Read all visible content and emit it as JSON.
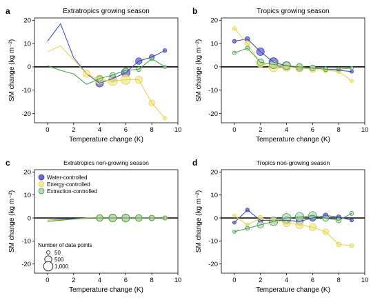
{
  "colors": {
    "water": "#3b3fb5",
    "water_fill": "#6a66d0",
    "energy": "#e8d23c",
    "energy_fill": "#f1ea9a",
    "extraction": "#3f9b46",
    "extraction_fill": "#b9dcbd"
  },
  "legend": {
    "water": "Water-controlled",
    "energy": "Energy-controlled",
    "extraction": "Extraction-controlled",
    "size_title": "Number of data points",
    "size_50": "50",
    "size_500": "500",
    "size_1000": "1,000"
  },
  "chart_data": [
    {
      "letter": "a",
      "type": "line",
      "title": "Extratropics growing season",
      "xlabel": "Temperature change (K)",
      "ylabel": "SM change (kg m⁻²)",
      "xlim": [
        -1,
        10
      ],
      "ylim": [
        -24,
        21
      ],
      "xticks": [
        0,
        2,
        4,
        6,
        8,
        10
      ],
      "yticks": [
        20,
        10,
        0,
        -10,
        -20
      ],
      "grid": false,
      "series": [
        {
          "key": "water",
          "x": [
            0,
            1,
            2,
            3,
            4,
            5,
            6,
            7,
            8,
            9
          ],
          "y": [
            11,
            18.5,
            4,
            -3,
            -7,
            -5,
            -2.5,
            2.5,
            4.2,
            7
          ],
          "n": [
            80,
            80,
            150,
            300,
            600,
            500,
            800,
            400,
            200,
            80
          ],
          "markers_from": 4
        },
        {
          "key": "energy",
          "x": [
            0,
            1,
            2,
            3,
            4,
            5,
            6,
            7,
            8,
            9
          ],
          "y": [
            6.5,
            9,
            3,
            -3,
            -5.5,
            -6,
            -5.5,
            -5.5,
            -15.5,
            -22
          ],
          "n": [
            80,
            80,
            150,
            500,
            900,
            1000,
            1000,
            500,
            300,
            50
          ],
          "markers_from": 3
        },
        {
          "key": "extraction",
          "x": [
            0,
            1,
            2,
            3,
            4,
            5,
            6,
            7,
            8,
            9
          ],
          "y": [
            0.5,
            -1.5,
            -3,
            -7.5,
            -5,
            -3.5,
            -1.5,
            -1,
            3.5,
            0
          ],
          "n": [
            50,
            60,
            80,
            150,
            250,
            200,
            200,
            150,
            100,
            50
          ],
          "markers_from": 4
        }
      ]
    },
    {
      "letter": "b",
      "type": "line",
      "title": "Tropics growing season",
      "xlabel": "Temperature change (K)",
      "ylabel": "SM change (kg m⁻²)",
      "xlim": [
        -1,
        10
      ],
      "ylim": [
        -24,
        21
      ],
      "xticks": [
        0,
        2,
        4,
        6,
        8,
        10
      ],
      "yticks": [
        20,
        10,
        0,
        -10,
        -20
      ],
      "grid": false,
      "series": [
        {
          "key": "water",
          "x": [
            0,
            1,
            2,
            3,
            4,
            5,
            6,
            7,
            8,
            9
          ],
          "y": [
            11,
            12,
            6.5,
            2,
            0.5,
            -0.5,
            -0.5,
            -1,
            -1.5,
            -2
          ],
          "n": [
            80,
            150,
            600,
            900,
            700,
            500,
            300,
            150,
            80,
            50
          ],
          "markers_from": 0
        },
        {
          "key": "energy",
          "x": [
            0,
            1,
            2,
            3,
            4,
            5,
            6,
            7,
            8,
            9
          ],
          "y": [
            16.5,
            10,
            1.5,
            0,
            0,
            -0.5,
            -1,
            -1.5,
            -2,
            -6
          ],
          "n": [
            80,
            200,
            600,
            1000,
            800,
            600,
            400,
            200,
            100,
            50
          ],
          "markers_from": 0
        },
        {
          "key": "extraction",
          "x": [
            0,
            1,
            2,
            3,
            4,
            5,
            6,
            7,
            8,
            9
          ],
          "y": [
            6,
            8,
            2,
            1,
            0.5,
            0,
            -0.5,
            -1,
            -1,
            -0.5
          ],
          "n": [
            60,
            100,
            400,
            700,
            600,
            400,
            300,
            150,
            80,
            50
          ],
          "markers_from": 0
        }
      ]
    },
    {
      "letter": "c",
      "type": "line",
      "title": "Extratropics non-growing season",
      "xlabel": "Temperature change (K)",
      "ylabel": "SM change (kg m⁻²)",
      "xlim": [
        -1,
        10
      ],
      "ylim": [
        -24,
        21
      ],
      "xticks": [
        0,
        2,
        4,
        6,
        8,
        10
      ],
      "yticks": [
        20,
        10,
        0,
        -10,
        -20
      ],
      "grid": false,
      "series": [
        {
          "key": "water",
          "x": [
            0,
            1,
            2,
            3,
            4,
            5,
            6,
            7,
            8,
            9
          ],
          "y": [
            -1,
            -0.5,
            -0.3,
            0,
            0,
            0,
            0,
            0,
            0,
            0
          ],
          "n": [
            50,
            50,
            60,
            100,
            300,
            400,
            400,
            300,
            200,
            100
          ],
          "markers_from": 4
        },
        {
          "key": "energy",
          "x": [
            0,
            1,
            2,
            3,
            4,
            5,
            6,
            7,
            8,
            9
          ],
          "y": [
            -1,
            -0.8,
            -0.5,
            0,
            0,
            0,
            0,
            0,
            0,
            0
          ],
          "n": [
            50,
            50,
            60,
            100,
            500,
            700,
            700,
            500,
            300,
            150
          ],
          "markers_from": 4
        },
        {
          "key": "extraction",
          "x": [
            0,
            1,
            2,
            3,
            4,
            5,
            6,
            7,
            8,
            9
          ],
          "y": [
            -1.5,
            -1,
            -0.5,
            -0.2,
            0,
            0,
            0,
            0,
            0,
            0
          ],
          "n": [
            50,
            50,
            60,
            100,
            400,
            600,
            600,
            400,
            250,
            100
          ],
          "markers_from": 4
        }
      ]
    },
    {
      "letter": "d",
      "type": "line",
      "title": "Tropics non-growing season",
      "xlabel": "Temperature change (K)",
      "ylabel": "SM change (kg m⁻²)",
      "xlim": [
        -1,
        10
      ],
      "ylim": [
        -24,
        21
      ],
      "xticks": [
        0,
        2,
        4,
        6,
        8,
        10
      ],
      "yticks": [
        20,
        10,
        0,
        -10,
        -20
      ],
      "grid": false,
      "series": [
        {
          "key": "water",
          "x": [
            0,
            1,
            2,
            3,
            4,
            5,
            6,
            7,
            8,
            9
          ],
          "y": [
            -2,
            3.5,
            -1,
            -1,
            -1,
            -1.5,
            0,
            1,
            0.5,
            -1
          ],
          "n": [
            50,
            80,
            200,
            400,
            600,
            500,
            400,
            200,
            100,
            50
          ],
          "markers_from": 0
        },
        {
          "key": "energy",
          "x": [
            0,
            1,
            2,
            3,
            4,
            5,
            6,
            7,
            8,
            9
          ],
          "y": [
            1,
            -3,
            0,
            -1,
            -2,
            -3,
            -4,
            -6,
            -11.5,
            -12
          ],
          "n": [
            50,
            80,
            200,
            500,
            700,
            600,
            500,
            300,
            150,
            80
          ],
          "markers_from": 0
        },
        {
          "key": "extraction",
          "x": [
            0,
            1,
            2,
            3,
            4,
            5,
            6,
            7,
            8,
            9
          ],
          "y": [
            -6,
            -4.5,
            -3,
            -1.5,
            0,
            0.5,
            1,
            0,
            -1,
            2
          ],
          "n": [
            50,
            100,
            400,
            800,
            900,
            800,
            700,
            400,
            200,
            100
          ],
          "markers_from": 0
        }
      ]
    }
  ]
}
